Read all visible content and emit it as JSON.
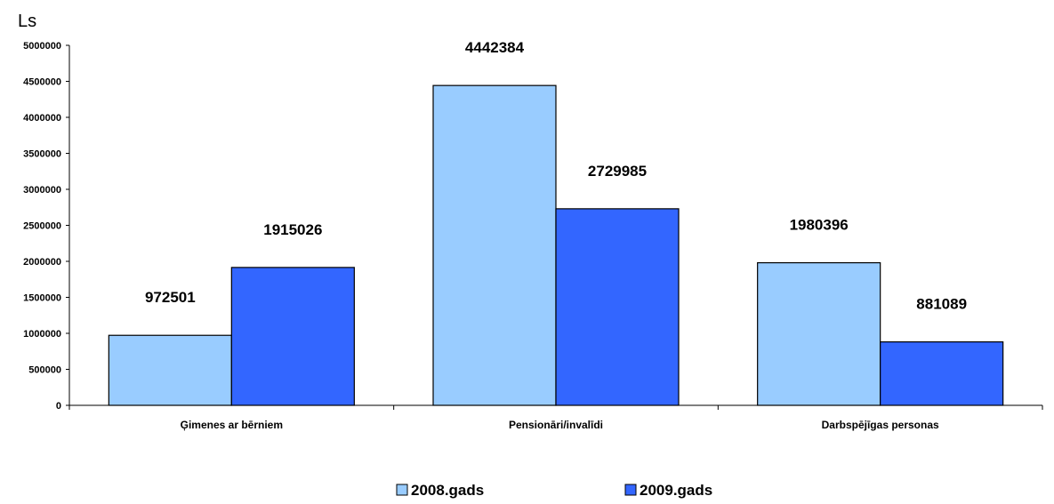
{
  "chart_data": {
    "type": "bar",
    "ylabel": "Ls",
    "categories": [
      "Ģimenes ar bērniem",
      "Pensionāri/invalīdi",
      "Darbspējīgas personas"
    ],
    "series": [
      {
        "name": "2008.gads",
        "color": "#99ccff",
        "values": [
          972501,
          4442384,
          1980396
        ]
      },
      {
        "name": "2009.gads",
        "color": "#3366ff",
        "values": [
          1915026,
          2729985,
          881089
        ]
      }
    ],
    "ylim": [
      0,
      5000000
    ],
    "yticks": [
      "0",
      "500000",
      "1000000",
      "1500000",
      "2000000",
      "2500000",
      "3000000",
      "3500000",
      "4000000",
      "4500000",
      "5000000"
    ],
    "data_labels": [
      [
        "972501",
        "4442384",
        "1980396"
      ],
      [
        "1915026",
        "2729985",
        "881089"
      ]
    ],
    "grid": false,
    "legend": "bottom"
  }
}
